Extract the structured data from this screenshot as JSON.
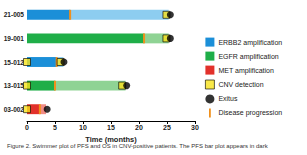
{
  "chart_data": {
    "type": "swimmer",
    "caption": "Figure 2. Swimmer plot of PFS and OS in CNV-positive patients. The PFS bar plot appears in dark",
    "x_label": "Time (months)",
    "xlim": [
      0,
      30
    ],
    "xticks": [
      0,
      5,
      10,
      15,
      20,
      25,
      30
    ],
    "grid": false,
    "legend": "right",
    "alterations": [
      {
        "name": "ERBB2 amplification",
        "color": "#1b8fd8",
        "light_color": "#8dcdf0"
      },
      {
        "name": "EGFR amplification",
        "color": "#1fae48",
        "light_color": "#8fd394"
      },
      {
        "name": "MET amplification",
        "color": "#e2312b",
        "light_color": "#f08c86"
      }
    ],
    "cnv_detection": {
      "name": "CNV detection",
      "color": "#f7e21c",
      "marker": "square"
    },
    "exitus": {
      "name": "Exitus",
      "color": "#000000",
      "marker": "circle"
    },
    "progression": {
      "name": "Disease progression",
      "color": "#f0901c",
      "marker": "line"
    },
    "patients": [
      {
        "name": "21-005",
        "alteration": "ERBB2 amplification",
        "pfs": 7.7,
        "os": 25.3,
        "progression": 7.7,
        "cnv_detection": [
          24.9
        ],
        "exitus": 25.6
      },
      {
        "name": "19-001",
        "alteration": "EGFR amplification",
        "pfs": 20.9,
        "os": 25.3,
        "progression": 20.9,
        "cnv_detection": [
          24.9
        ],
        "exitus": 25.6
      },
      {
        "name": "15-012",
        "alteration": "ERBB2 amplification",
        "pfs": 5.3,
        "os": 6.5,
        "progression": 5.3,
        "cnv_detection": [
          0,
          6.0
        ],
        "exitus": 6.6
      },
      {
        "name": "13-015",
        "alteration": "EGFR amplification",
        "pfs": 5.0,
        "os": 17.6,
        "progression": 5.0,
        "cnv_detection": [
          0,
          17.0
        ],
        "exitus": 17.8
      },
      {
        "name": "03-002",
        "alteration": "MET amplification",
        "pfs": 2.3,
        "os": 3.4,
        "progression": 2.3,
        "cnv_detection": [
          0
        ],
        "exitus": 3.6
      }
    ]
  }
}
